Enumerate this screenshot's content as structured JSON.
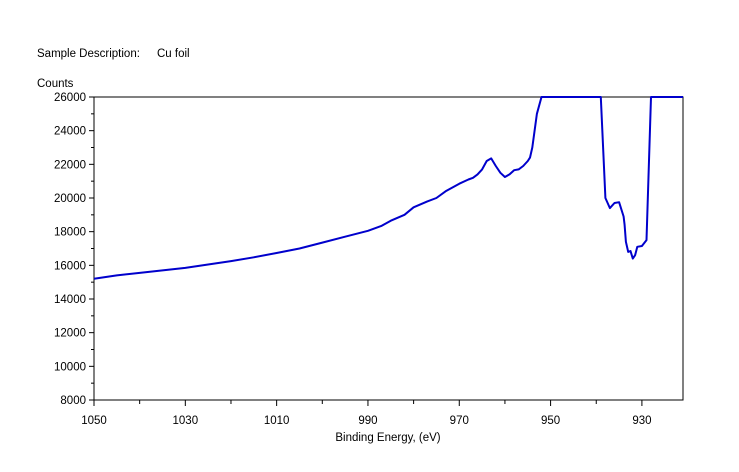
{
  "chart_data": {
    "type": "line",
    "subtitle_label": "Sample Description:",
    "subtitle_value": "Cu  foil",
    "ylabel": "Counts",
    "xlabel": "Binding Energy, (eV)",
    "xlim": [
      1050,
      921
    ],
    "ylim": [
      8000,
      26000
    ],
    "x_reversed": true,
    "x_ticks": [
      1050,
      1030,
      1010,
      990,
      970,
      950,
      930
    ],
    "y_ticks": [
      8000,
      10000,
      12000,
      14000,
      16000,
      18000,
      20000,
      22000,
      24000,
      26000
    ],
    "grid": false,
    "line_color": "#0000cc",
    "series": [
      {
        "x": [
          1050,
          1045,
          1040,
          1035,
          1030,
          1025,
          1020,
          1015,
          1010,
          1005,
          1000,
          995,
          990,
          987,
          985,
          982,
          980,
          977,
          975,
          973,
          970,
          968,
          967,
          966,
          965,
          964,
          963,
          962,
          961,
          960,
          959,
          958,
          957,
          956,
          955,
          954.5,
          954,
          953,
          952,
          951,
          950.5,
          950,
          949,
          948,
          947,
          946,
          945,
          944.5,
          944,
          943,
          942,
          941,
          940,
          939,
          938,
          937,
          936,
          935,
          934,
          933.8,
          933.5,
          933,
          932.5,
          932,
          931.5,
          931,
          930,
          929,
          928,
          927,
          926,
          925,
          924,
          923,
          921
        ],
        "y": [
          15200,
          15400,
          15550,
          15700,
          15850,
          16050,
          16250,
          16480,
          16730,
          17000,
          17350,
          17700,
          18050,
          18350,
          18650,
          19000,
          19450,
          19800,
          20000,
          20400,
          20850,
          21100,
          21200,
          21400,
          21700,
          22200,
          22350,
          21900,
          21500,
          21250,
          21400,
          21650,
          21700,
          21900,
          22200,
          22400,
          23000,
          25000,
          26200,
          26200,
          26200,
          26200,
          26200,
          26200,
          26200,
          26200,
          26200,
          26200,
          26200,
          26200,
          26200,
          26200,
          26200,
          26200,
          20000,
          19400,
          19700,
          19750,
          18900,
          18400,
          17400,
          16800,
          16850,
          16400,
          16600,
          17100,
          17150,
          17500,
          26200,
          26200,
          26200,
          26200,
          26200,
          26200,
          26200
        ]
      }
    ]
  }
}
